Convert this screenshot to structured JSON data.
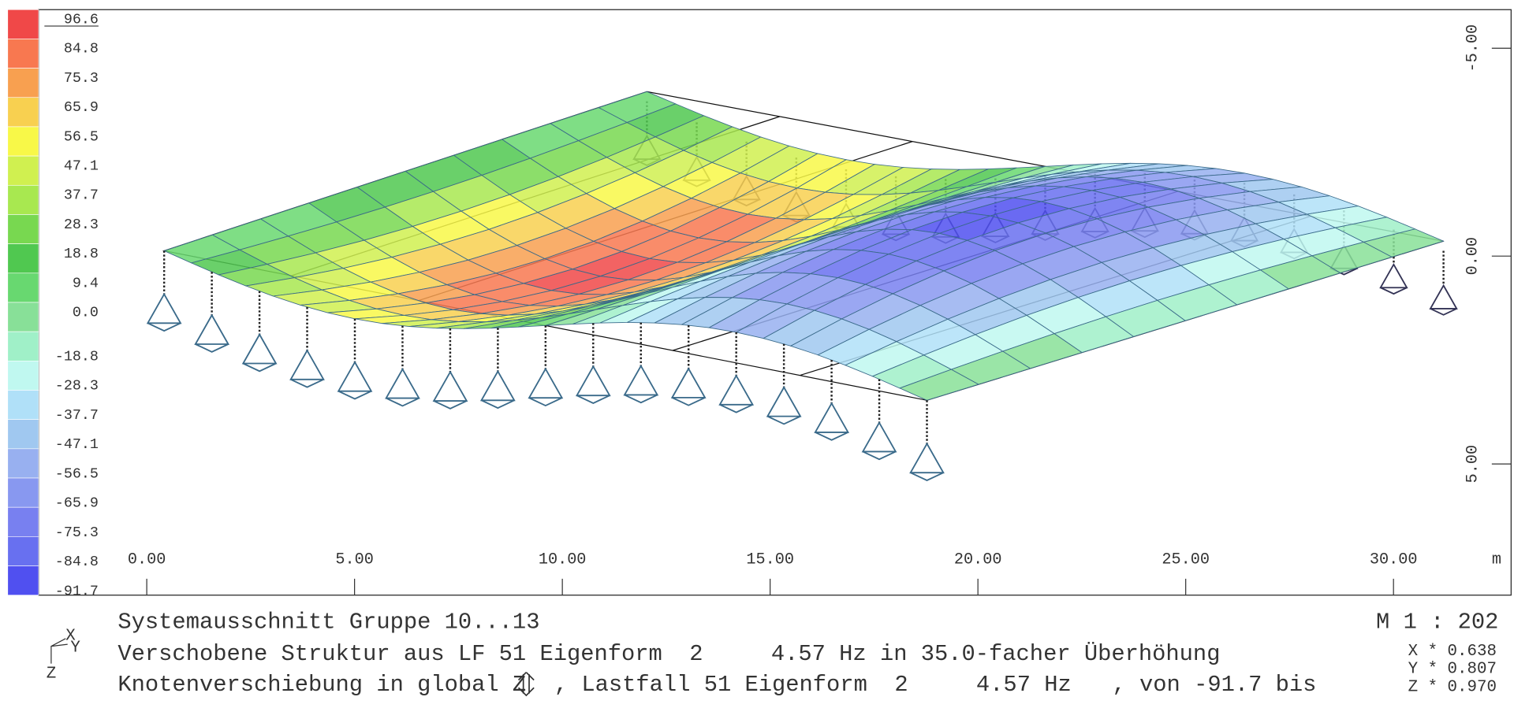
{
  "legend": {
    "labels": [
      "96.6",
      "84.8",
      "75.3",
      "65.9",
      "56.5",
      "47.1",
      "37.7",
      "28.3",
      "18.8",
      "9.4",
      "0.0",
      "-18.8",
      "-28.3",
      "-37.7",
      "-47.1",
      "-56.5",
      "-65.9",
      "-75.3",
      "-84.8",
      "-91.7"
    ],
    "colors": [
      "#f04848",
      "#f87850",
      "#f8a050",
      "#f8d050",
      "#f8f848",
      "#d0f050",
      "#a8e850",
      "#78d850",
      "#50c850",
      "#68d870",
      "#88e098",
      "#a0f0c8",
      "#c0f8f0",
      "#b0e0f8",
      "#a0c8f0",
      "#98b0f0",
      "#8898f0",
      "#7880f0",
      "#6870f0",
      "#5050f0"
    ]
  },
  "x_axis": {
    "labels": [
      "0.00",
      "5.00",
      "10.00",
      "15.00",
      "20.00",
      "25.00",
      "30.00"
    ],
    "unit": "m"
  },
  "right_axis": {
    "labels": [
      "-5.00",
      "0.00",
      "5.00"
    ]
  },
  "axis_icon": {
    "x": "X",
    "y": "Y",
    "z": "Z"
  },
  "footer": {
    "line1": "Systemausschnitt Gruppe 10...13",
    "line2": "Verschobene Struktur aus LF 51 Eigenform  2     4.57 Hz in 35.0-facher Überhöhung",
    "line3_left": "Knotenverschiebung in global Z",
    "line3_right": ", Lastfall 51 Eigenform  2     4.57 Hz   , von -91.7 bis",
    "scale": "M 1 : 202",
    "factors": [
      "X * 0.638",
      "Y * 0.807",
      "Z * 0.970"
    ]
  }
}
